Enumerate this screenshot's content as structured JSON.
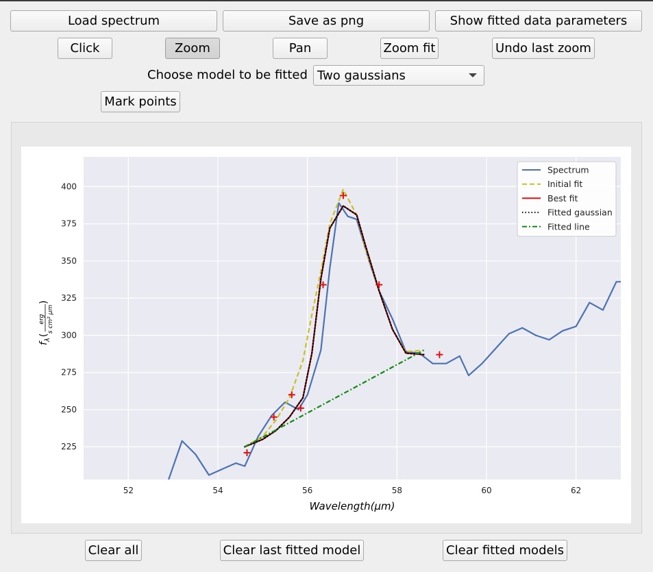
{
  "toolbar": {
    "load_spectrum": "Load spectrum",
    "save_png": "Save as png",
    "show_params": "Show fitted data parameters",
    "click": "Click",
    "zoom": "Zoom",
    "pan": "Pan",
    "zoom_fit": "Zoom fit",
    "undo_zoom": "Undo last zoom",
    "model_label": "Choose model to be fitted",
    "model_selected": "Two gaussians",
    "mark_points": "Mark points"
  },
  "bottom": {
    "clear_all": "Clear all",
    "clear_last": "Clear last fitted model",
    "clear_models": "Clear fitted models"
  },
  "chart_data": {
    "type": "line",
    "xlabel": "Wavelength(μm)",
    "ylabel": "fλ(erg / s cm² μm)",
    "ylabel_f": "f",
    "ylabel_sub": "λ",
    "ylabel_num": "erg",
    "ylabel_den": "s cm² μm",
    "xlim": [
      51.0,
      63.0
    ],
    "ylim": [
      203.0,
      420.0
    ],
    "xticks": [
      52,
      54,
      56,
      58,
      60,
      62
    ],
    "yticks": [
      225,
      250,
      275,
      300,
      325,
      350,
      375,
      400
    ],
    "grid": true,
    "legend_position": "top-right",
    "series": [
      {
        "name": "Spectrum",
        "color": "#4c72b0",
        "dash": "solid",
        "x": [
          52.9,
          53.2,
          53.5,
          53.8,
          54.1,
          54.4,
          54.6,
          54.9,
          55.2,
          55.5,
          55.8,
          56.0,
          56.3,
          56.5,
          56.7,
          56.9,
          57.1,
          57.4,
          57.6,
          57.9,
          58.2,
          58.5,
          58.8,
          59.1,
          59.4,
          59.6,
          59.9,
          60.2,
          60.5,
          60.8,
          61.1,
          61.4,
          61.7,
          62.0,
          62.3,
          62.6,
          62.9,
          63.0
        ],
        "y": [
          203,
          229,
          220,
          206,
          210,
          214,
          212,
          232,
          246,
          255,
          250,
          260,
          290,
          345,
          389,
          380,
          378,
          348,
          330,
          311,
          289,
          288,
          281,
          281,
          286,
          273,
          281,
          291,
          301,
          305,
          300,
          297,
          303,
          306,
          322,
          317,
          336,
          336
        ]
      },
      {
        "name": "Initial fit",
        "color": "#c8c024",
        "dash": "dashed",
        "x": [
          54.6,
          55.0,
          55.3,
          55.6,
          55.9,
          56.1,
          56.3,
          56.5,
          56.8,
          57.1,
          57.3,
          57.6,
          57.9,
          58.2,
          58.6
        ],
        "y": [
          225,
          232,
          243,
          258,
          283,
          314,
          343,
          375,
          398,
          381,
          358,
          330,
          304,
          289,
          290
        ]
      },
      {
        "name": "Best fit",
        "color": "#e01010",
        "dash": "solid",
        "x": [
          54.6,
          55.0,
          55.3,
          55.6,
          55.9,
          56.1,
          56.3,
          56.5,
          56.8,
          57.1,
          57.3,
          57.6,
          57.9,
          58.2,
          58.6
        ],
        "y": [
          225,
          230,
          236,
          245,
          258,
          288,
          338,
          372,
          387,
          381,
          360,
          330,
          304,
          288,
          287
        ]
      },
      {
        "name": "Fitted gaussian",
        "color": "#000000",
        "dash": "dotted",
        "x": [
          54.6,
          55.0,
          55.3,
          55.6,
          55.9,
          56.1,
          56.3,
          56.5,
          56.8,
          57.1,
          57.3,
          57.6,
          57.9,
          58.2,
          58.6
        ],
        "y": [
          225,
          230,
          236,
          245,
          258,
          288,
          338,
          372,
          387,
          381,
          360,
          330,
          304,
          288,
          287
        ]
      },
      {
        "name": "Fitted line",
        "color": "#138a13",
        "dash": "dashdot",
        "x": [
          54.6,
          58.6
        ],
        "y": [
          225,
          290
        ]
      }
    ],
    "markers": {
      "color": "#e01010",
      "x": [
        54.65,
        55.25,
        55.65,
        55.85,
        56.35,
        56.8,
        57.6,
        58.95
      ],
      "y": [
        221,
        245,
        260,
        251,
        334,
        394,
        334,
        287
      ]
    }
  }
}
